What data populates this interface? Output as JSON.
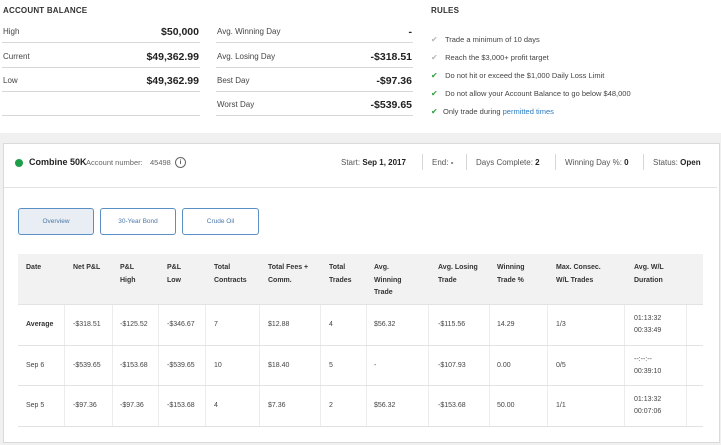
{
  "account_balance": {
    "title": "ACCOUNT BALANCE",
    "rows": [
      {
        "label": "High",
        "value": "$50,000"
      },
      {
        "label": "Current",
        "value": "$49,362.99"
      },
      {
        "label": "Low",
        "value": "$49,362.99"
      }
    ]
  },
  "day_stats": [
    {
      "label": "Avg. Winning Day",
      "value": "-"
    },
    {
      "label": "Avg. Losing Day",
      "value": "-$318.51"
    },
    {
      "label": "Best Day",
      "value": "-$97.36"
    },
    {
      "label": "Worst Day",
      "value": "-$539.65"
    }
  ],
  "rules": {
    "title": "RULES",
    "items": [
      {
        "text": "Trade a minimum of 10 days",
        "status": "pending"
      },
      {
        "text": "Reach the $3,000+ profit target",
        "status": "pending"
      },
      {
        "text": "Do not hit or exceed the $1,000 Daily Loss Limit",
        "status": "met"
      },
      {
        "text": "Do not allow your Account Balance to go below $48,000",
        "status": "met"
      },
      {
        "text": "Only trade during ",
        "link": "permitted times",
        "status": "met"
      }
    ],
    "check_glyph": "✔",
    "colors": {
      "pending": "#b5b5b5",
      "met": "#2e9e3f"
    }
  },
  "account": {
    "name": "Combine 50K",
    "number_label": "Account number:",
    "number": "45498",
    "info_icon": "ⓘ",
    "status_color": "#1f9e4a",
    "start_label": "Start:",
    "start_value": "Sep 1, 2017",
    "end_label": "End:",
    "end_value": "-",
    "days_label": "Days Complete:",
    "days_value": "2",
    "winning_label": "Winning Day %:",
    "winning_value": "0",
    "status_label": "Status:",
    "status_value": "Open"
  },
  "tabs": [
    "Overview",
    "30-Year Bond",
    "Crude Oil"
  ],
  "table": {
    "headers": [
      [
        "Date"
      ],
      [
        "Net P&L"
      ],
      [
        "P&L",
        "High"
      ],
      [
        "P&L",
        "Low"
      ],
      [
        "Total",
        "Contracts"
      ],
      [
        "Total Fees +",
        "Comm."
      ],
      [
        "Total",
        "Trades"
      ],
      [
        "Avg.",
        "Winning",
        "Trade"
      ],
      [
        "Avg. Losing",
        "Trade"
      ],
      [
        "Winning",
        "Trade %"
      ],
      [
        "Max. Consec.",
        "W/L Trades"
      ],
      [
        "Avg. W/L",
        "Duration"
      ]
    ],
    "rows": [
      {
        "date": "Average",
        "net_pnl": "-$318.51",
        "pnl_high": "-$125.52",
        "pnl_low": "-$346.67",
        "contracts": "7",
        "fees": "$12.88",
        "trades": "4",
        "avg_win": "$56.32",
        "avg_loss": "-$115.56",
        "win_pct": "14.29",
        "consec": "1/3",
        "dur_win": "01:13:32",
        "dur_loss": "00:33:49"
      },
      {
        "date": "Sep 6",
        "net_pnl": "-$539.65",
        "pnl_high": "-$153.68",
        "pnl_low": "-$539.65",
        "contracts": "10",
        "fees": "$18.40",
        "trades": "5",
        "avg_win": "-",
        "avg_loss": "-$107.93",
        "win_pct": "0.00",
        "consec": "0/5",
        "dur_win": "--:--:--",
        "dur_loss": "00:39:10"
      },
      {
        "date": "Sep 5",
        "net_pnl": "-$97.36",
        "pnl_high": "-$97.36",
        "pnl_low": "-$153.68",
        "contracts": "4",
        "fees": "$7.36",
        "trades": "2",
        "avg_win": "$56.32",
        "avg_loss": "-$153.68",
        "win_pct": "50.00",
        "consec": "1/1",
        "dur_win": "01:13:32",
        "dur_loss": "00:07:06"
      }
    ]
  }
}
